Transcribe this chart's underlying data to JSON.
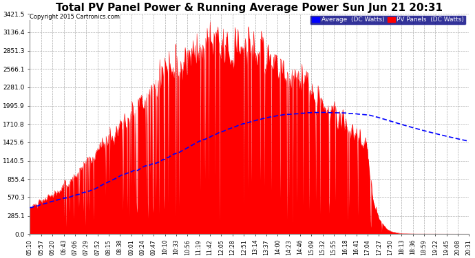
{
  "title": "Total PV Panel Power & Running Average Power Sun Jun 21 20:31",
  "copyright": "Copyright 2015 Cartronics.com",
  "legend_avg": "Average  (DC Watts)",
  "legend_pv": "PV Panels  (DC Watts)",
  "yticks": [
    0.0,
    285.1,
    570.3,
    855.4,
    1140.5,
    1425.6,
    1710.8,
    1995.9,
    2281.0,
    2566.1,
    2851.3,
    3136.4,
    3421.5
  ],
  "ytick_labels": [
    "0.0",
    "285.1",
    "570.3",
    "855.4",
    "1140.5",
    "1425.6",
    "1710.8",
    "1995.9",
    "2281.0",
    "2566.1",
    "2851.3",
    "3136.4",
    "3421.5"
  ],
  "ymax": 3421.5,
  "title_fontsize": 11,
  "pv_color": "#FF0000",
  "avg_color": "#0000FF",
  "bg_color": "#FFFFFF",
  "grid_color": "#AAAAAA",
  "xtick_labels": [
    "05:10",
    "05:57",
    "06:20",
    "06:43",
    "07:06",
    "07:29",
    "07:52",
    "08:15",
    "08:38",
    "09:01",
    "09:24",
    "09:47",
    "10:10",
    "10:33",
    "10:56",
    "11:19",
    "11:42",
    "12:05",
    "12:28",
    "12:51",
    "13:14",
    "13:37",
    "14:00",
    "14:23",
    "14:46",
    "15:09",
    "15:32",
    "15:55",
    "16:18",
    "16:41",
    "17:04",
    "17:27",
    "17:50",
    "18:13",
    "18:36",
    "18:59",
    "19:22",
    "19:45",
    "20:08",
    "20:31"
  ]
}
